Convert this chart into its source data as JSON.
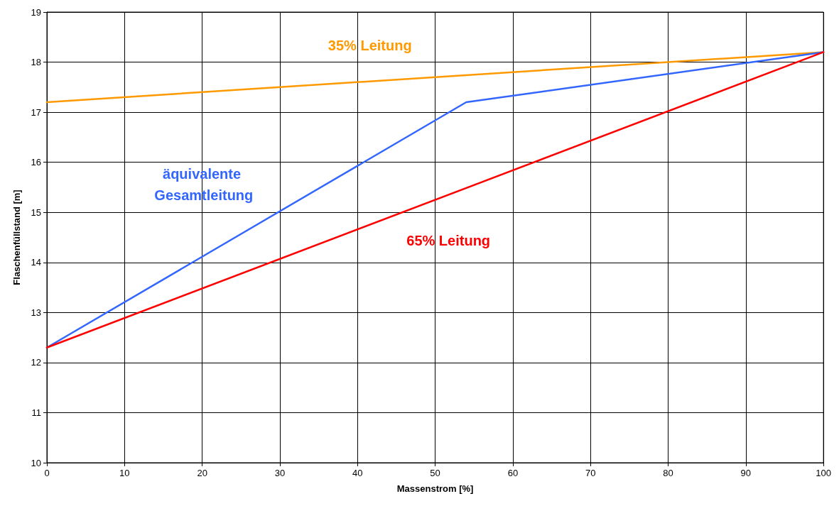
{
  "chart_data": {
    "type": "line",
    "xlabel": "Massenstrom [%]",
    "ylabel": "Flaschenfüllstand [m]",
    "xlim": [
      0,
      100
    ],
    "xticks": [
      0,
      10,
      20,
      30,
      40,
      50,
      60,
      70,
      80,
      90,
      100
    ],
    "ylim": [
      10,
      19
    ],
    "yticks": [
      10,
      11,
      12,
      13,
      14,
      15,
      16,
      17,
      18,
      19
    ],
    "grid": true,
    "legend": false,
    "marker": "none",
    "line_style": "solid",
    "series": [
      {
        "name": "35% Leitung",
        "color": "#ff9900",
        "x": [
          0,
          100
        ],
        "values": [
          17.2,
          18.2
        ]
      },
      {
        "name": "äquivalente Gesamtleitung",
        "color": "#3366ff",
        "x": [
          0,
          54,
          100
        ],
        "values": [
          12.3,
          17.2,
          18.2
        ]
      },
      {
        "name": "65% Leitung",
        "color": "#ff0000",
        "x": [
          0,
          100
        ],
        "values": [
          12.3,
          18.2
        ]
      }
    ]
  }
}
